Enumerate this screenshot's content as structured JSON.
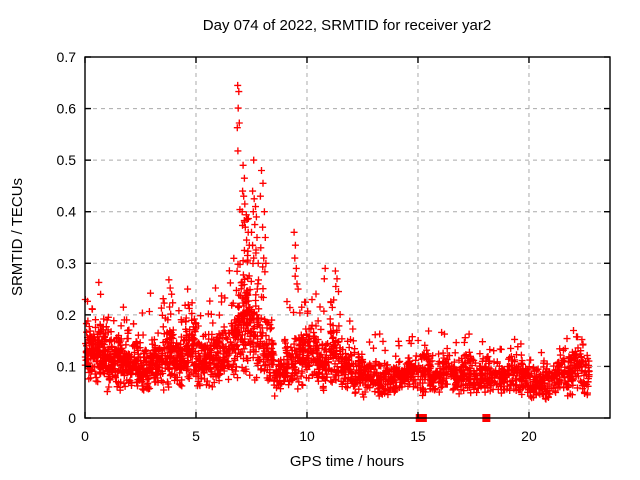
{
  "window": {
    "background": "#ffffff"
  },
  "chart_data": {
    "type": "scatter",
    "title": "Day 074 of 2022, SRMTID for receiver yar2",
    "xlabel": "GPS time / hours",
    "ylabel": "SRMTID / TECUs",
    "xlim": [
      0,
      23.65
    ],
    "ylim": [
      0,
      0.7
    ],
    "xticks": [
      0,
      5,
      10,
      15,
      20
    ],
    "yticks": [
      0,
      0.1,
      0.2,
      0.3,
      0.4,
      0.5,
      0.6,
      0.7
    ],
    "grid": "dashed",
    "grid_color": "#aaaaaa",
    "frame_color": "#000000",
    "marker": "+",
    "marker_color": "#ff0000",
    "marker_size_px": 7,
    "legend": "none",
    "seed": 20220074,
    "band_bins": [
      [
        0.0,
        0.5,
        85,
        0.06,
        0.2,
        4,
        0.235
      ],
      [
        0.5,
        1.0,
        85,
        0.06,
        0.19,
        3,
        0.245
      ],
      [
        1.0,
        1.5,
        78,
        0.05,
        0.17,
        3,
        0.21
      ],
      [
        1.5,
        2.0,
        78,
        0.05,
        0.18,
        3,
        0.215
      ],
      [
        2.0,
        2.5,
        72,
        0.05,
        0.16,
        3,
        0.19
      ],
      [
        2.5,
        3.0,
        66,
        0.04,
        0.15,
        3,
        0.23
      ],
      [
        3.0,
        3.5,
        66,
        0.05,
        0.16,
        3,
        0.24
      ],
      [
        3.5,
        4.0,
        72,
        0.05,
        0.2,
        5,
        0.235
      ],
      [
        4.0,
        4.5,
        66,
        0.05,
        0.17,
        3,
        0.22
      ],
      [
        4.5,
        5.0,
        72,
        0.06,
        0.21,
        4,
        0.24
      ],
      [
        5.0,
        5.5,
        66,
        0.05,
        0.17,
        3,
        0.21
      ],
      [
        5.5,
        6.0,
        66,
        0.05,
        0.18,
        4,
        0.24
      ],
      [
        6.0,
        6.5,
        66,
        0.06,
        0.19,
        4,
        0.25
      ],
      [
        6.5,
        7.0,
        70,
        0.07,
        0.25,
        6,
        0.42
      ],
      [
        7.0,
        7.4,
        80,
        0.07,
        0.3,
        8,
        0.42
      ],
      [
        7.4,
        8.0,
        72,
        0.07,
        0.26,
        6,
        0.38
      ],
      [
        8.0,
        8.5,
        60,
        0.06,
        0.2,
        4,
        0.3
      ],
      [
        8.5,
        9.0,
        48,
        0.04,
        0.12,
        2,
        0.15
      ],
      [
        9.0,
        9.5,
        55,
        0.05,
        0.16,
        3,
        0.24
      ],
      [
        9.5,
        10.0,
        60,
        0.05,
        0.18,
        4,
        0.26
      ],
      [
        10.0,
        10.5,
        60,
        0.06,
        0.2,
        4,
        0.25
      ],
      [
        10.5,
        11.0,
        55,
        0.05,
        0.16,
        3,
        0.24
      ],
      [
        11.0,
        11.5,
        60,
        0.05,
        0.2,
        5,
        0.24
      ],
      [
        11.5,
        12.0,
        55,
        0.05,
        0.15,
        3,
        0.2
      ],
      [
        12.0,
        12.5,
        52,
        0.04,
        0.13,
        3,
        0.2
      ],
      [
        12.5,
        13.0,
        50,
        0.04,
        0.12,
        2,
        0.16
      ],
      [
        13.0,
        13.5,
        50,
        0.04,
        0.12,
        3,
        0.17
      ],
      [
        13.5,
        14.0,
        48,
        0.04,
        0.11,
        2,
        0.14
      ],
      [
        14.0,
        14.5,
        48,
        0.04,
        0.12,
        2,
        0.15
      ],
      [
        14.5,
        15.0,
        48,
        0.04,
        0.13,
        3,
        0.17
      ],
      [
        15.0,
        15.5,
        48,
        0.04,
        0.14,
        3,
        0.18
      ],
      [
        15.5,
        16.0,
        48,
        0.04,
        0.12,
        2,
        0.15
      ],
      [
        16.0,
        16.5,
        48,
        0.04,
        0.13,
        3,
        0.17
      ],
      [
        16.5,
        17.0,
        48,
        0.04,
        0.12,
        2,
        0.15
      ],
      [
        17.0,
        17.5,
        48,
        0.04,
        0.13,
        3,
        0.17
      ],
      [
        17.5,
        18.0,
        48,
        0.04,
        0.12,
        2,
        0.15
      ],
      [
        18.0,
        18.5,
        48,
        0.04,
        0.13,
        2,
        0.16
      ],
      [
        18.5,
        19.0,
        48,
        0.04,
        0.12,
        2,
        0.15
      ],
      [
        19.0,
        19.5,
        48,
        0.04,
        0.13,
        3,
        0.17
      ],
      [
        19.5,
        20.0,
        48,
        0.04,
        0.12,
        2,
        0.15
      ],
      [
        20.0,
        20.5,
        48,
        0.03,
        0.11,
        2,
        0.14
      ],
      [
        20.5,
        21.0,
        48,
        0.03,
        0.11,
        2,
        0.14
      ],
      [
        21.0,
        21.5,
        48,
        0.04,
        0.12,
        2,
        0.15
      ],
      [
        21.5,
        22.0,
        48,
        0.04,
        0.13,
        3,
        0.16
      ],
      [
        22.0,
        22.4,
        42,
        0.05,
        0.15,
        4,
        0.175
      ],
      [
        22.4,
        22.72,
        32,
        0.04,
        0.13,
        2,
        0.15
      ]
    ],
    "spike_points": [
      [
        0.62,
        0.263
      ],
      [
        2.95,
        0.242
      ],
      [
        3.78,
        0.268
      ],
      [
        3.84,
        0.252
      ],
      [
        3.9,
        0.24
      ],
      [
        4.62,
        0.25
      ],
      [
        5.88,
        0.252
      ],
      [
        6.55,
        0.262
      ],
      [
        6.88,
        0.645
      ],
      [
        6.93,
        0.633
      ],
      [
        6.9,
        0.601
      ],
      [
        6.95,
        0.572
      ],
      [
        6.86,
        0.563
      ],
      [
        6.89,
        0.518
      ],
      [
        7.12,
        0.49
      ],
      [
        7.18,
        0.465
      ],
      [
        7.1,
        0.44
      ],
      [
        7.15,
        0.43
      ],
      [
        7.2,
        0.415
      ],
      [
        7.08,
        0.4
      ],
      [
        7.3,
        0.385
      ],
      [
        7.22,
        0.37
      ],
      [
        7.35,
        0.36
      ],
      [
        7.28,
        0.345
      ],
      [
        7.4,
        0.335
      ],
      [
        7.18,
        0.325
      ],
      [
        7.32,
        0.315
      ],
      [
        7.12,
        0.305
      ],
      [
        7.6,
        0.5
      ],
      [
        7.55,
        0.44
      ],
      [
        7.62,
        0.425
      ],
      [
        7.68,
        0.41
      ],
      [
        7.58,
        0.4
      ],
      [
        7.72,
        0.39
      ],
      [
        7.65,
        0.375
      ],
      [
        7.5,
        0.36
      ],
      [
        7.75,
        0.35
      ],
      [
        7.55,
        0.335
      ],
      [
        7.7,
        0.32
      ],
      [
        7.6,
        0.31
      ],
      [
        7.8,
        0.3
      ],
      [
        7.95,
        0.48
      ],
      [
        8.02,
        0.455
      ],
      [
        7.9,
        0.43
      ],
      [
        8.08,
        0.4
      ],
      [
        8.0,
        0.37
      ],
      [
        8.12,
        0.35
      ],
      [
        7.92,
        0.33
      ],
      [
        8.05,
        0.31
      ],
      [
        8.15,
        0.3
      ],
      [
        9.42,
        0.36
      ],
      [
        9.48,
        0.335
      ],
      [
        9.45,
        0.31
      ],
      [
        9.52,
        0.29
      ],
      [
        9.47,
        0.275
      ],
      [
        9.55,
        0.26
      ],
      [
        9.6,
        0.25
      ],
      [
        10.82,
        0.29
      ],
      [
        10.78,
        0.27
      ],
      [
        11.28,
        0.285
      ],
      [
        11.35,
        0.27
      ],
      [
        11.3,
        0.255
      ],
      [
        11.42,
        0.245
      ]
    ],
    "zero_points": [
      [
        15.08,
        0
      ],
      [
        15.22,
        0
      ],
      [
        18.08,
        0
      ]
    ]
  }
}
